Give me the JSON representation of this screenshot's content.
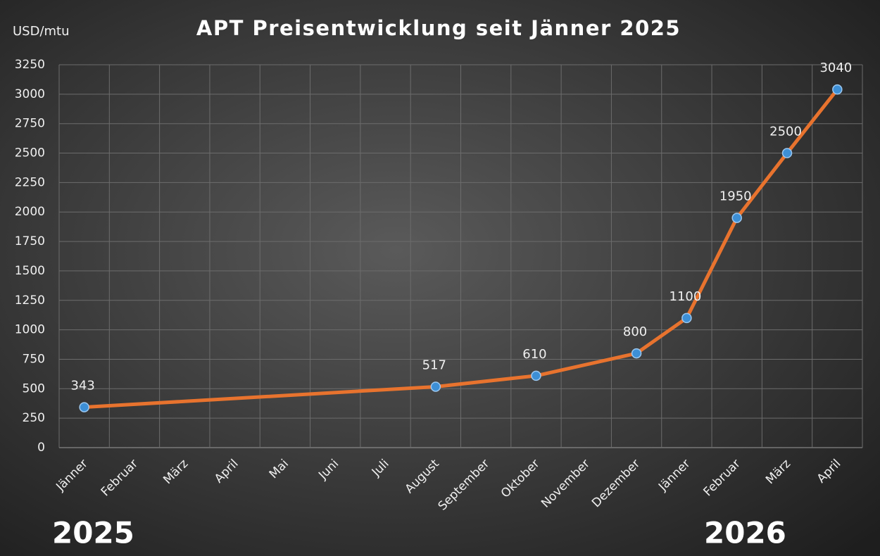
{
  "chart_data": {
    "type": "line",
    "title": "APT Preisentwicklung seit Jänner 2025",
    "y_label": "USD/mtu",
    "annotations": [
      "2025",
      "2026"
    ],
    "categories": [
      "Jänner",
      "Februar",
      "März",
      "April",
      "Mai",
      "Juni",
      "Juli",
      "August",
      "September",
      "Oktober",
      "November",
      "Dezember",
      "Jänner",
      "Februar",
      "März",
      "April"
    ],
    "series": [
      {
        "name": "APT",
        "color": "#e8732e",
        "marker_color": "#3d8fd6",
        "values": [
          343,
          null,
          null,
          null,
          null,
          null,
          null,
          517,
          null,
          610,
          null,
          800,
          1100,
          1950,
          2500,
          3040
        ]
      }
    ],
    "connect_gaps": true,
    "ylim": [
      0,
      3250
    ],
    "yticks": [
      0,
      250,
      500,
      750,
      1000,
      1250,
      1500,
      1750,
      2000,
      2250,
      2500,
      2750,
      3000,
      3250
    ],
    "grid": true
  }
}
